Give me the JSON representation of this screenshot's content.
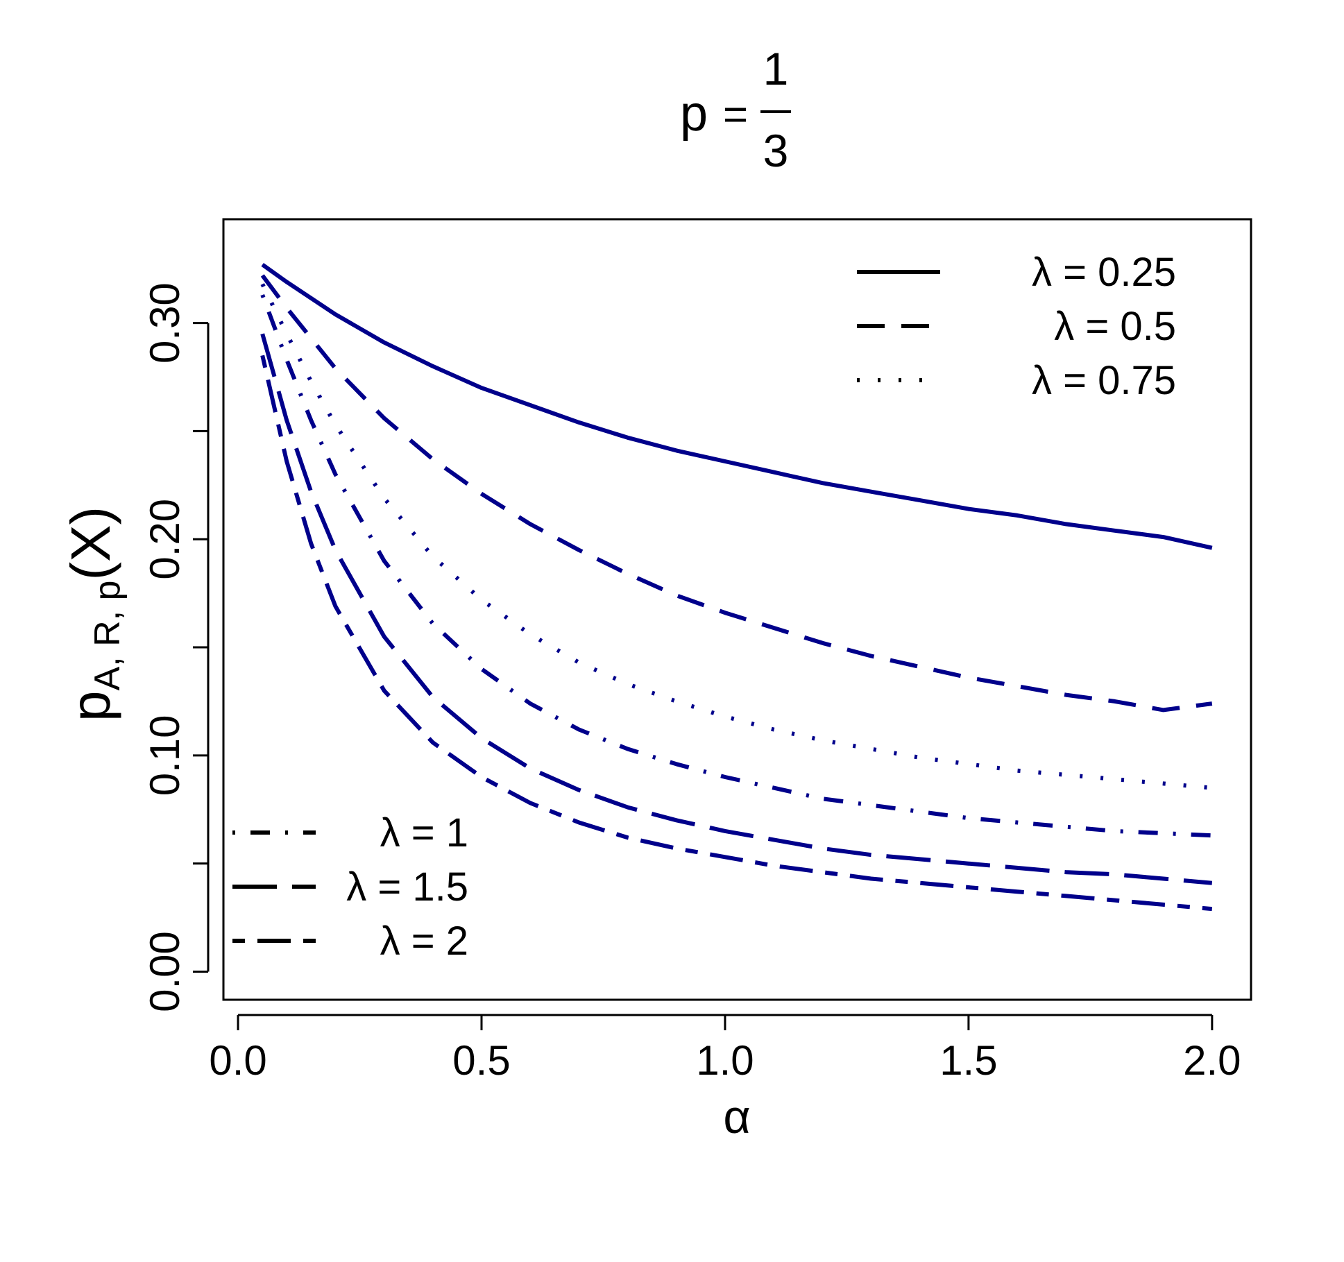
{
  "chart_data": {
    "type": "line",
    "title": {
      "lhs": "p",
      "eq": "=",
      "num": "1",
      "den": "3"
    },
    "xlabel": "α",
    "ylabel": {
      "main": "p",
      "sub": "A, R, p",
      "arg": "(X)"
    },
    "xlim": [
      -0.03,
      2.08
    ],
    "ylim": [
      -0.013,
      0.348
    ],
    "xticks": [
      0.0,
      0.5,
      1.0,
      1.5,
      2.0
    ],
    "xtick_labels": [
      "0.0",
      "0.5",
      "1.0",
      "1.5",
      "2.0"
    ],
    "yticks": [
      0.0,
      0.05,
      0.1,
      0.15,
      0.2,
      0.25,
      0.3
    ],
    "ytick_labels": [
      "0.00",
      "",
      "0.10",
      "",
      "0.20",
      "",
      "0.30"
    ],
    "grid": false,
    "line_color": "#00008B",
    "legends": [
      {
        "placement": "top-right",
        "entries": [
          {
            "series": 0,
            "label": "λ = 0.25"
          },
          {
            "series": 1,
            "label": "λ = 0.5"
          },
          {
            "series": 2,
            "label": "λ = 0.75"
          }
        ]
      },
      {
        "placement": "bottom-left",
        "entries": [
          {
            "series": 3,
            "label": "λ = 1"
          },
          {
            "series": 4,
            "label": "λ = 1.5"
          },
          {
            "series": 5,
            "label": "λ = 2"
          }
        ]
      }
    ],
    "series": [
      {
        "name": "λ = 0.25",
        "dash": "solid",
        "x": [
          0.05,
          0.1,
          0.2,
          0.3,
          0.4,
          0.5,
          0.6,
          0.7,
          0.8,
          0.9,
          1.0,
          1.1,
          1.2,
          1.3,
          1.4,
          1.5,
          1.6,
          1.7,
          1.8,
          1.9,
          2.0
        ],
        "y": [
          0.327,
          0.319,
          0.304,
          0.291,
          0.28,
          0.27,
          0.262,
          0.254,
          0.247,
          0.241,
          0.236,
          0.231,
          0.226,
          0.222,
          0.218,
          0.214,
          0.211,
          0.207,
          0.204,
          0.201,
          0.196
        ]
      },
      {
        "name": "λ = 0.5",
        "dash": "dashed",
        "x": [
          0.05,
          0.1,
          0.15,
          0.2,
          0.3,
          0.4,
          0.5,
          0.6,
          0.7,
          0.8,
          0.9,
          1.0,
          1.1,
          1.2,
          1.3,
          1.4,
          1.5,
          1.6,
          1.7,
          1.8,
          1.9,
          2.0
        ],
        "y": [
          0.322,
          0.307,
          0.293,
          0.279,
          0.256,
          0.237,
          0.221,
          0.207,
          0.195,
          0.184,
          0.174,
          0.166,
          0.159,
          0.152,
          0.146,
          0.141,
          0.136,
          0.132,
          0.128,
          0.125,
          0.121,
          0.124
        ]
      },
      {
        "name": "λ = 0.75",
        "dash": "dotted",
        "x": [
          0.05,
          0.1,
          0.15,
          0.2,
          0.3,
          0.4,
          0.5,
          0.6,
          0.7,
          0.8,
          0.9,
          1.0,
          1.1,
          1.2,
          1.3,
          1.4,
          1.5,
          1.6,
          1.7,
          1.8,
          1.9,
          2.0
        ],
        "y": [
          0.318,
          0.295,
          0.273,
          0.253,
          0.219,
          0.192,
          0.172,
          0.156,
          0.143,
          0.133,
          0.125,
          0.118,
          0.112,
          0.107,
          0.103,
          0.099,
          0.096,
          0.093,
          0.091,
          0.089,
          0.087,
          0.085
        ]
      },
      {
        "name": "λ = 1",
        "dash": "dotdash",
        "x": [
          0.05,
          0.1,
          0.15,
          0.2,
          0.3,
          0.4,
          0.5,
          0.6,
          0.7,
          0.8,
          0.9,
          1.0,
          1.1,
          1.2,
          1.3,
          1.4,
          1.5,
          1.6,
          1.7,
          1.8,
          1.9,
          2.0
        ],
        "y": [
          0.313,
          0.283,
          0.255,
          0.23,
          0.19,
          0.161,
          0.14,
          0.124,
          0.112,
          0.103,
          0.096,
          0.09,
          0.085,
          0.08,
          0.077,
          0.074,
          0.071,
          0.069,
          0.067,
          0.065,
          0.064,
          0.063
        ]
      },
      {
        "name": "λ = 1.5",
        "dash": "longdash",
        "x": [
          0.05,
          0.1,
          0.15,
          0.2,
          0.3,
          0.4,
          0.5,
          0.6,
          0.7,
          0.8,
          0.9,
          1.0,
          1.1,
          1.2,
          1.3,
          1.4,
          1.5,
          1.6,
          1.7,
          1.8,
          1.9,
          2.0
        ],
        "y": [
          0.295,
          0.255,
          0.222,
          0.195,
          0.155,
          0.127,
          0.108,
          0.094,
          0.084,
          0.076,
          0.07,
          0.065,
          0.061,
          0.057,
          0.054,
          0.052,
          0.05,
          0.048,
          0.046,
          0.045,
          0.043,
          0.041
        ]
      },
      {
        "name": "λ = 2",
        "dash": "twodash",
        "x": [
          0.05,
          0.1,
          0.15,
          0.2,
          0.3,
          0.4,
          0.5,
          0.6,
          0.7,
          0.8,
          0.9,
          1.0,
          1.1,
          1.2,
          1.3,
          1.4,
          1.5,
          1.6,
          1.7,
          1.8,
          1.9,
          2.0
        ],
        "y": [
          0.285,
          0.236,
          0.198,
          0.169,
          0.13,
          0.106,
          0.09,
          0.078,
          0.069,
          0.062,
          0.057,
          0.053,
          0.049,
          0.046,
          0.043,
          0.041,
          0.039,
          0.037,
          0.035,
          0.033,
          0.031,
          0.029
        ]
      }
    ]
  }
}
